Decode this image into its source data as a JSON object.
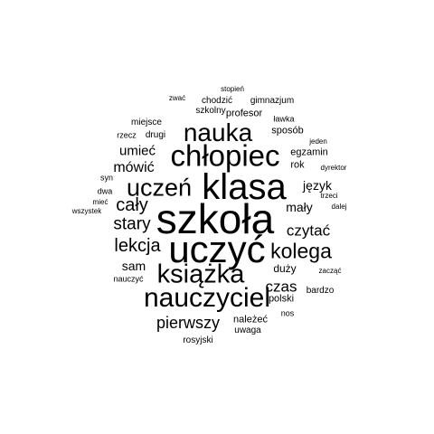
{
  "word_cloud": {
    "text_color": "#000000",
    "background": "#ffffff",
    "words": [
      {
        "text": "szkoła",
        "size": 1.0
      },
      {
        "text": "uczyć",
        "size": 0.92
      },
      {
        "text": "klasa",
        "size": 0.88
      },
      {
        "text": "chłopiec",
        "size": 0.74
      },
      {
        "text": "nauczyciel",
        "size": 0.66
      },
      {
        "text": "książka",
        "size": 0.64
      },
      {
        "text": "nauka",
        "size": 0.62
      },
      {
        "text": "uczeń",
        "size": 0.6
      },
      {
        "text": "kolega",
        "size": 0.5
      },
      {
        "text": "cały",
        "size": 0.44
      },
      {
        "text": "lekcja",
        "size": 0.44
      },
      {
        "text": "stary",
        "size": 0.42
      },
      {
        "text": "pierwszy",
        "size": 0.39
      },
      {
        "text": "czas",
        "size": 0.38
      },
      {
        "text": "czytać",
        "size": 0.37
      },
      {
        "text": "mówić",
        "size": 0.34
      },
      {
        "text": "umieć",
        "size": 0.32
      },
      {
        "text": "mały",
        "size": 0.31
      },
      {
        "text": "język",
        "size": 0.31
      },
      {
        "text": "sam",
        "size": 0.3
      },
      {
        "text": "duży",
        "size": 0.26
      },
      {
        "text": "sposób",
        "size": 0.24
      },
      {
        "text": "profesor",
        "size": 0.24
      },
      {
        "text": "polski",
        "size": 0.23
      },
      {
        "text": "egzamin",
        "size": 0.23
      },
      {
        "text": "należeć",
        "size": 0.23
      },
      {
        "text": "rok",
        "size": 0.22
      },
      {
        "text": "miejsce",
        "size": 0.21
      },
      {
        "text": "szkolny",
        "size": 0.21
      },
      {
        "text": "gimnazjum",
        "size": 0.21
      },
      {
        "text": "drugi",
        "size": 0.21
      },
      {
        "text": "uwaga",
        "size": 0.21
      },
      {
        "text": "rosyjski",
        "size": 0.21
      },
      {
        "text": "chodzić",
        "size": 0.2
      },
      {
        "text": "bardzo",
        "size": 0.2
      },
      {
        "text": "syn",
        "size": 0.19
      },
      {
        "text": "dwa",
        "size": 0.19
      },
      {
        "text": "nauczyć",
        "size": 0.19
      },
      {
        "text": "ławka",
        "size": 0.18
      },
      {
        "text": "rzecz",
        "size": 0.18
      },
      {
        "text": "nos",
        "size": 0.18
      },
      {
        "text": "zacząć",
        "size": 0.18
      },
      {
        "text": "dyrektor",
        "size": 0.17
      },
      {
        "text": "trzeci",
        "size": 0.17
      },
      {
        "text": "stopień",
        "size": 0.16
      },
      {
        "text": "zwać",
        "size": 0.16
      },
      {
        "text": "jeden",
        "size": 0.16
      },
      {
        "text": "mieć",
        "size": 0.16
      },
      {
        "text": "dalej",
        "size": 0.16
      },
      {
        "text": "wszystek",
        "size": 0.16
      }
    ]
  }
}
